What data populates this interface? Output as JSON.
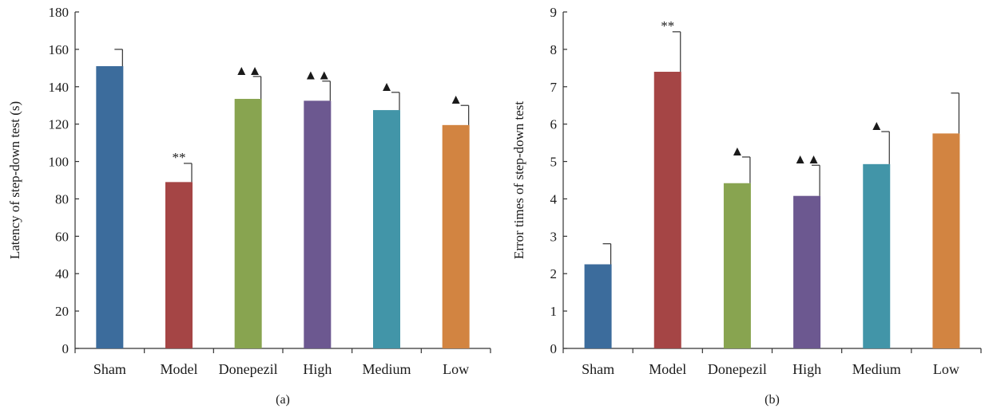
{
  "chart_data": [
    {
      "type": "bar",
      "panel_label": "(a)",
      "categories": [
        "Sham",
        "Model",
        "Donepezil",
        "High",
        "Medium",
        "Low"
      ],
      "values": [
        151,
        89,
        133.5,
        132.5,
        127.5,
        119.5
      ],
      "errors": [
        9,
        10,
        12,
        10.5,
        9.5,
        10.5
      ],
      "significance": [
        "",
        "**",
        "▲▲",
        "▲▲",
        "▲",
        "▲"
      ],
      "ylabel": "Latency of step-down test (s)",
      "xlabel": "",
      "ylim": [
        0,
        180
      ],
      "yticks": [
        0,
        20,
        40,
        60,
        80,
        100,
        120,
        140,
        160,
        180
      ],
      "colors": [
        "#3c6c9c",
        "#a54545",
        "#88a450",
        "#6c5890",
        "#4295a8",
        "#d28441"
      ]
    },
    {
      "type": "bar",
      "panel_label": "(b)",
      "categories": [
        "Sham",
        "Model",
        "Donepezil",
        "High",
        "Medium",
        "Low"
      ],
      "values": [
        2.25,
        7.4,
        4.42,
        4.08,
        4.93,
        5.75
      ],
      "errors": [
        0.55,
        1.07,
        0.7,
        0.82,
        0.87,
        1.08
      ],
      "significance": [
        "",
        "**",
        "▲",
        "▲▲",
        "▲",
        ""
      ],
      "ylabel": "Error times of step-down test",
      "xlabel": "",
      "ylim": [
        0,
        9
      ],
      "yticks": [
        0,
        1,
        2,
        3,
        4,
        5,
        6,
        7,
        8,
        9
      ],
      "colors": [
        "#3c6c9c",
        "#a54545",
        "#88a450",
        "#6c5890",
        "#4295a8",
        "#d28441"
      ]
    }
  ]
}
